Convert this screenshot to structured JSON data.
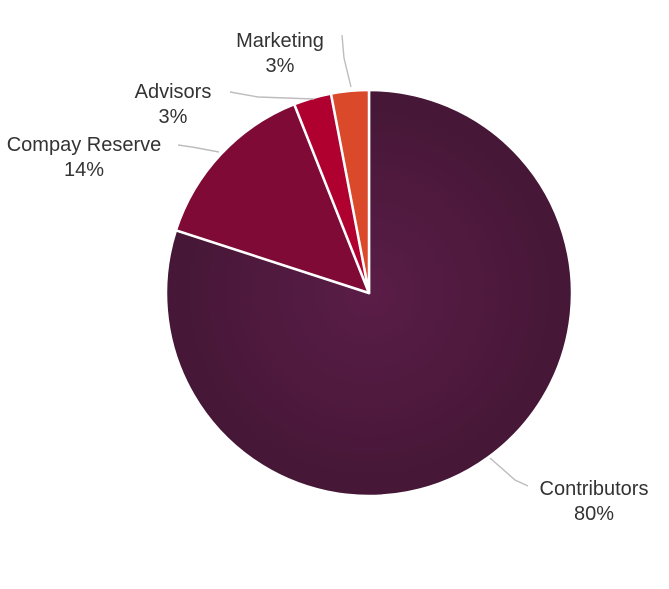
{
  "chart_data": {
    "type": "pie",
    "title": "",
    "categories": [
      "Contributors",
      "Compay Reserve",
      "Advisors",
      "Marketing"
    ],
    "values": [
      80,
      14,
      3,
      3
    ],
    "labels": [
      "80%",
      "14%",
      "3%",
      "3%"
    ],
    "colors": [
      "#4e1a3e",
      "#7e0a35",
      "#b0002f",
      "#d9492a"
    ],
    "legend": "none"
  }
}
